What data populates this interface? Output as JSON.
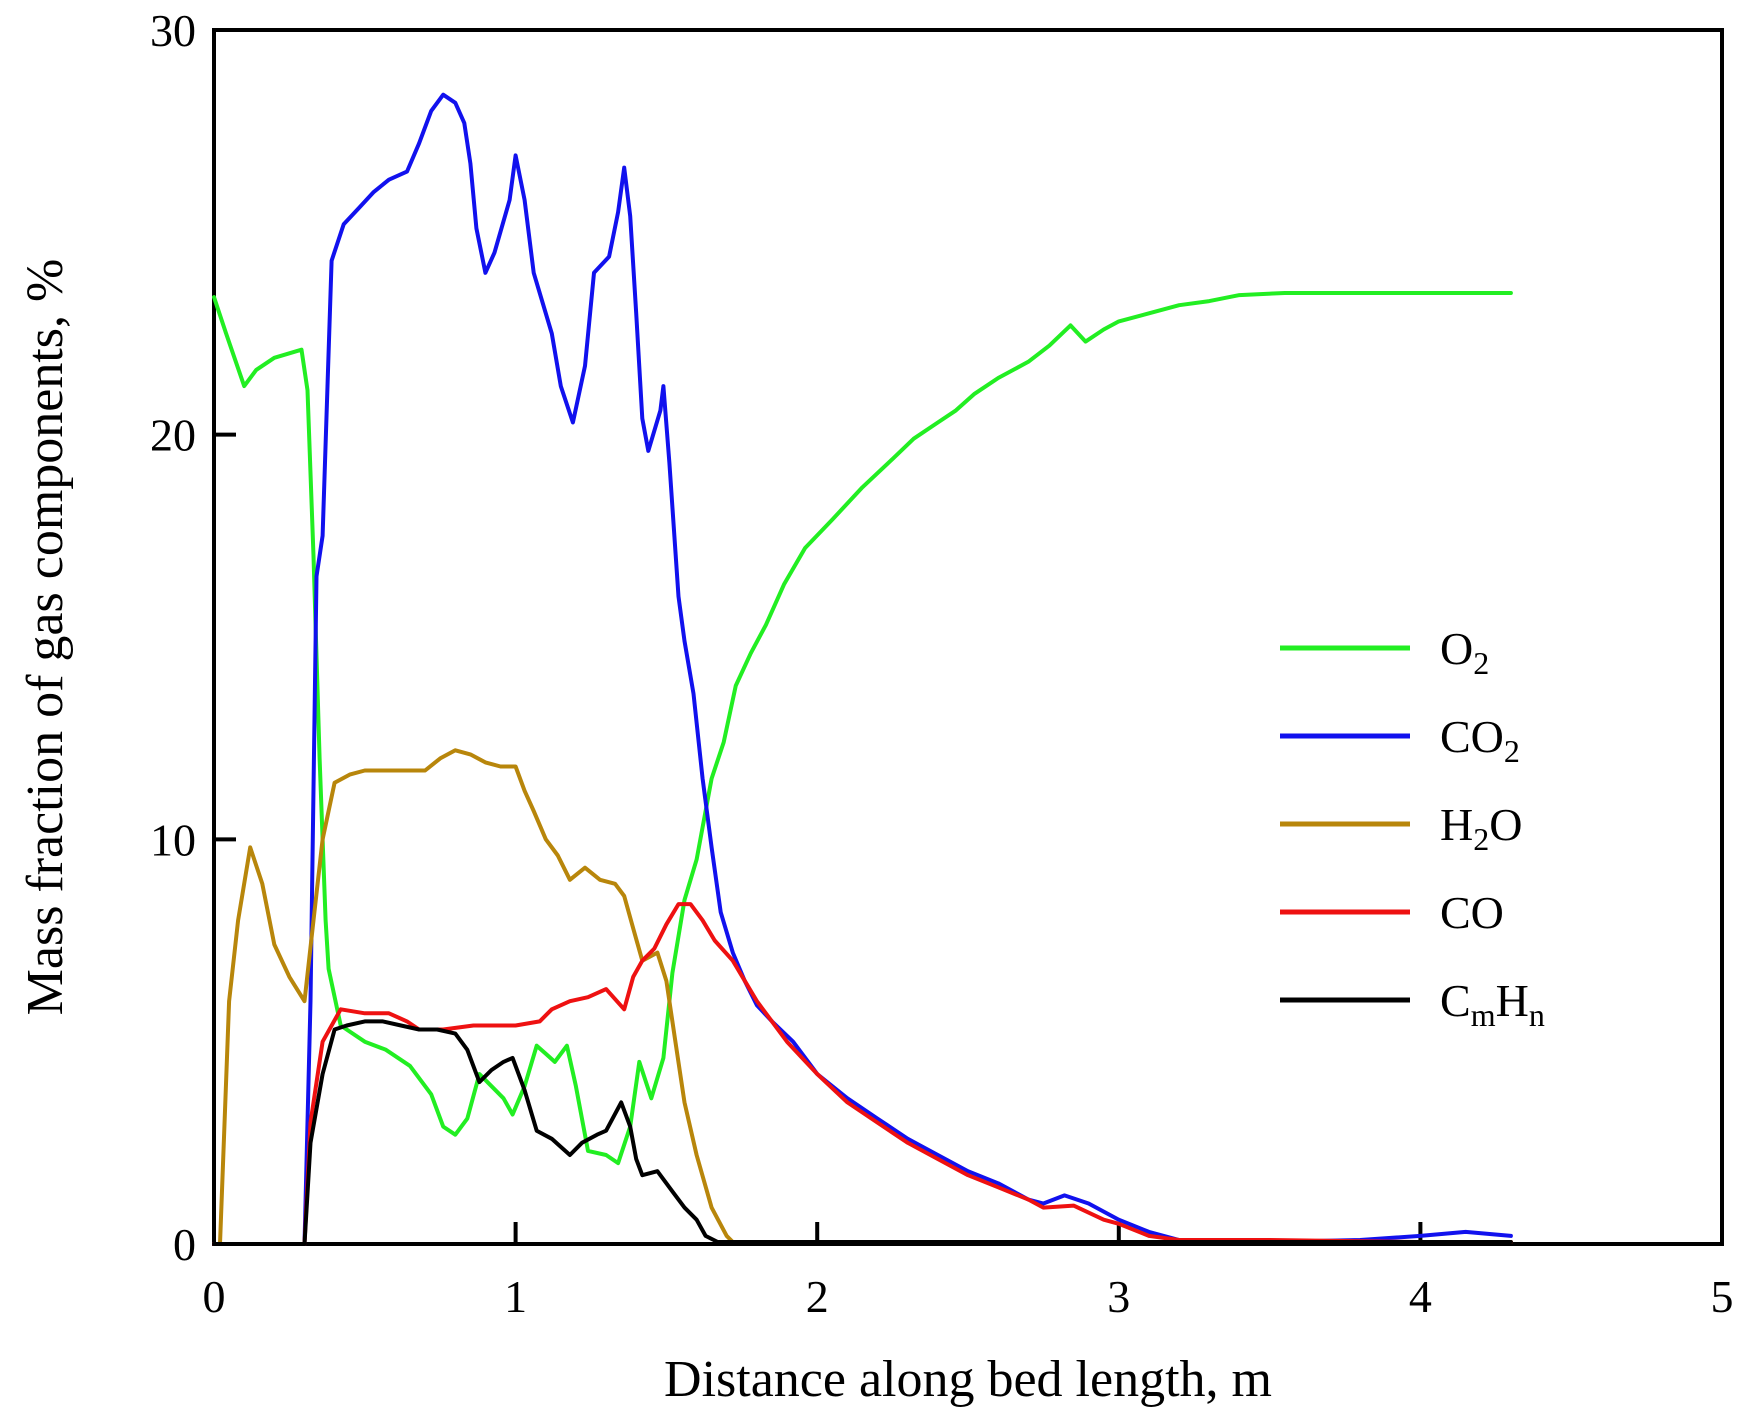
{
  "chart_data": {
    "type": "line",
    "title": "",
    "xlabel": "Distance along bed length, m",
    "ylabel": "Mass fraction of gas components, %",
    "xlim": [
      0,
      5
    ],
    "ylim": [
      0,
      30
    ],
    "xticks": [
      0,
      1,
      2,
      3,
      4,
      5
    ],
    "yticks": [
      0,
      10,
      20,
      30
    ],
    "xtick_labels": [
      "0",
      "1",
      "2",
      "3",
      "4",
      "5"
    ],
    "ytick_labels": [
      "0",
      "10",
      "20",
      "30"
    ],
    "grid": false,
    "legend_position": "right",
    "series": [
      {
        "name": "O2",
        "label_main": "O",
        "label_sub": "2",
        "label_main2": "",
        "label_sub2": "",
        "color": "#22ee22",
        "points": [
          [
            0,
            23.4
          ],
          [
            0.04,
            22.5
          ],
          [
            0.1,
            21.2
          ],
          [
            0.14,
            21.6
          ],
          [
            0.2,
            21.9
          ],
          [
            0.29,
            22.1
          ],
          [
            0.31,
            21.1
          ],
          [
            0.33,
            17
          ],
          [
            0.35,
            12
          ],
          [
            0.37,
            8
          ],
          [
            0.38,
            6.8
          ],
          [
            0.42,
            5.4
          ],
          [
            0.5,
            5.0
          ],
          [
            0.57,
            4.8
          ],
          [
            0.65,
            4.4
          ],
          [
            0.72,
            3.7
          ],
          [
            0.76,
            2.9
          ],
          [
            0.8,
            2.7
          ],
          [
            0.84,
            3.1
          ],
          [
            0.88,
            4.2
          ],
          [
            0.92,
            3.9
          ],
          [
            0.96,
            3.6
          ],
          [
            0.99,
            3.2
          ],
          [
            1.03,
            3.9
          ],
          [
            1.07,
            4.9
          ],
          [
            1.1,
            4.7
          ],
          [
            1.13,
            4.5
          ],
          [
            1.17,
            4.9
          ],
          [
            1.2,
            3.9
          ],
          [
            1.24,
            2.3
          ],
          [
            1.3,
            2.2
          ],
          [
            1.34,
            2.0
          ],
          [
            1.38,
            2.9
          ],
          [
            1.41,
            4.5
          ],
          [
            1.45,
            3.6
          ],
          [
            1.49,
            4.6
          ],
          [
            1.52,
            6.7
          ],
          [
            1.56,
            8.5
          ],
          [
            1.6,
            9.5
          ],
          [
            1.65,
            11.5
          ],
          [
            1.69,
            12.4
          ],
          [
            1.73,
            13.8
          ],
          [
            1.78,
            14.6
          ],
          [
            1.83,
            15.3
          ],
          [
            1.89,
            16.3
          ],
          [
            1.96,
            17.2
          ],
          [
            2.05,
            17.9
          ],
          [
            2.15,
            18.7
          ],
          [
            2.25,
            19.4
          ],
          [
            2.32,
            19.9
          ],
          [
            2.4,
            20.3
          ],
          [
            2.46,
            20.6
          ],
          [
            2.52,
            21.0
          ],
          [
            2.6,
            21.4
          ],
          [
            2.7,
            21.8
          ],
          [
            2.77,
            22.2
          ],
          [
            2.84,
            22.7
          ],
          [
            2.89,
            22.3
          ],
          [
            2.95,
            22.6
          ],
          [
            3.0,
            22.8
          ],
          [
            3.1,
            23.0
          ],
          [
            3.2,
            23.2
          ],
          [
            3.3,
            23.3
          ],
          [
            3.4,
            23.45
          ],
          [
            3.55,
            23.5
          ],
          [
            4.0,
            23.5
          ],
          [
            4.3,
            23.5
          ]
        ]
      },
      {
        "name": "CO2",
        "label_main": "CO",
        "label_sub": "2",
        "label_main2": "",
        "label_sub2": "",
        "color": "#1111ee",
        "points": [
          [
            0,
            0
          ],
          [
            0.05,
            0
          ],
          [
            0.3,
            0
          ],
          [
            0.32,
            6
          ],
          [
            0.34,
            16.5
          ],
          [
            0.36,
            17.5
          ],
          [
            0.39,
            24.3
          ],
          [
            0.43,
            25.2
          ],
          [
            0.48,
            25.6
          ],
          [
            0.53,
            26.0
          ],
          [
            0.58,
            26.3
          ],
          [
            0.64,
            26.5
          ],
          [
            0.68,
            27.2
          ],
          [
            0.72,
            28.0
          ],
          [
            0.76,
            28.4
          ],
          [
            0.8,
            28.2
          ],
          [
            0.83,
            27.7
          ],
          [
            0.85,
            26.7
          ],
          [
            0.87,
            25.1
          ],
          [
            0.9,
            24.0
          ],
          [
            0.93,
            24.5
          ],
          [
            0.98,
            25.8
          ],
          [
            1.0,
            26.9
          ],
          [
            1.03,
            25.8
          ],
          [
            1.06,
            24.0
          ],
          [
            1.12,
            22.5
          ],
          [
            1.15,
            21.2
          ],
          [
            1.19,
            20.3
          ],
          [
            1.23,
            21.7
          ],
          [
            1.26,
            24.0
          ],
          [
            1.31,
            24.4
          ],
          [
            1.34,
            25.5
          ],
          [
            1.36,
            26.6
          ],
          [
            1.38,
            25.4
          ],
          [
            1.4,
            23.0
          ],
          [
            1.42,
            20.4
          ],
          [
            1.44,
            19.6
          ],
          [
            1.48,
            20.6
          ],
          [
            1.49,
            21.2
          ],
          [
            1.51,
            19.3
          ],
          [
            1.54,
            16.0
          ],
          [
            1.56,
            14.9
          ],
          [
            1.59,
            13.6
          ],
          [
            1.62,
            11.5
          ],
          [
            1.65,
            9.8
          ],
          [
            1.68,
            8.2
          ],
          [
            1.72,
            7.2
          ],
          [
            1.76,
            6.5
          ],
          [
            1.8,
            5.9
          ],
          [
            1.85,
            5.5
          ],
          [
            1.92,
            5.0
          ],
          [
            2.0,
            4.2
          ],
          [
            2.1,
            3.6
          ],
          [
            2.2,
            3.1
          ],
          [
            2.3,
            2.6
          ],
          [
            2.4,
            2.2
          ],
          [
            2.5,
            1.8
          ],
          [
            2.6,
            1.5
          ],
          [
            2.7,
            1.1
          ],
          [
            2.75,
            1.0
          ],
          [
            2.82,
            1.2
          ],
          [
            2.9,
            1.0
          ],
          [
            3.0,
            0.6
          ],
          [
            3.1,
            0.3
          ],
          [
            3.2,
            0.1
          ],
          [
            3.3,
            0.05
          ],
          [
            3.5,
            0.05
          ],
          [
            3.8,
            0.1
          ],
          [
            4.0,
            0.2
          ],
          [
            4.15,
            0.3
          ],
          [
            4.3,
            0.2
          ]
        ]
      },
      {
        "name": "H2O",
        "label_main": "H",
        "label_sub": "2",
        "label_main2": "O",
        "label_sub2": "",
        "color": "#b8860b",
        "points": [
          [
            0,
            0
          ],
          [
            0.02,
            0
          ],
          [
            0.05,
            6.0
          ],
          [
            0.08,
            8.0
          ],
          [
            0.12,
            9.8
          ],
          [
            0.16,
            8.9
          ],
          [
            0.2,
            7.4
          ],
          [
            0.25,
            6.6
          ],
          [
            0.3,
            6.0
          ],
          [
            0.33,
            8.0
          ],
          [
            0.36,
            10.0
          ],
          [
            0.4,
            11.4
          ],
          [
            0.45,
            11.6
          ],
          [
            0.5,
            11.7
          ],
          [
            0.56,
            11.7
          ],
          [
            0.66,
            11.7
          ],
          [
            0.7,
            11.7
          ],
          [
            0.75,
            12.0
          ],
          [
            0.8,
            12.2
          ],
          [
            0.85,
            12.1
          ],
          [
            0.9,
            11.9
          ],
          [
            0.95,
            11.8
          ],
          [
            1.0,
            11.8
          ],
          [
            1.03,
            11.2
          ],
          [
            1.06,
            10.7
          ],
          [
            1.1,
            10.0
          ],
          [
            1.14,
            9.6
          ],
          [
            1.18,
            9.0
          ],
          [
            1.23,
            9.3
          ],
          [
            1.28,
            9.0
          ],
          [
            1.33,
            8.9
          ],
          [
            1.36,
            8.6
          ],
          [
            1.39,
            7.8
          ],
          [
            1.42,
            7.0
          ],
          [
            1.47,
            7.2
          ],
          [
            1.5,
            6.5
          ],
          [
            1.53,
            5.0
          ],
          [
            1.56,
            3.5
          ],
          [
            1.6,
            2.2
          ],
          [
            1.65,
            0.9
          ],
          [
            1.7,
            0.2
          ],
          [
            1.72,
            0.05
          ],
          [
            2.0,
            0.05
          ],
          [
            2.2,
            0.05
          ],
          [
            3.0,
            0.05
          ],
          [
            3.5,
            0.05
          ],
          [
            4.0,
            0.05
          ],
          [
            4.3,
            0.05
          ]
        ]
      },
      {
        "name": "CO",
        "label_main": "CO",
        "label_sub": "",
        "label_main2": "",
        "label_sub2": "",
        "color": "#ee1111",
        "points": [
          [
            0,
            0
          ],
          [
            0.3,
            0
          ],
          [
            0.32,
            3.0
          ],
          [
            0.36,
            5.0
          ],
          [
            0.42,
            5.8
          ],
          [
            0.5,
            5.7
          ],
          [
            0.58,
            5.7
          ],
          [
            0.64,
            5.5
          ],
          [
            0.68,
            5.3
          ],
          [
            0.76,
            5.3
          ],
          [
            0.86,
            5.4
          ],
          [
            1.0,
            5.4
          ],
          [
            1.08,
            5.5
          ],
          [
            1.12,
            5.8
          ],
          [
            1.18,
            6.0
          ],
          [
            1.24,
            6.1
          ],
          [
            1.3,
            6.3
          ],
          [
            1.36,
            5.8
          ],
          [
            1.39,
            6.6
          ],
          [
            1.42,
            7.0
          ],
          [
            1.46,
            7.3
          ],
          [
            1.5,
            7.9
          ],
          [
            1.54,
            8.4
          ],
          [
            1.58,
            8.4
          ],
          [
            1.62,
            8.0
          ],
          [
            1.66,
            7.5
          ],
          [
            1.72,
            7.0
          ],
          [
            1.8,
            6.0
          ],
          [
            1.9,
            5.0
          ],
          [
            2.0,
            4.2
          ],
          [
            2.1,
            3.5
          ],
          [
            2.2,
            3.0
          ],
          [
            2.3,
            2.5
          ],
          [
            2.4,
            2.1
          ],
          [
            2.5,
            1.7
          ],
          [
            2.6,
            1.4
          ],
          [
            2.7,
            1.1
          ],
          [
            2.75,
            0.9
          ],
          [
            2.85,
            0.95
          ],
          [
            2.95,
            0.6
          ],
          [
            3.0,
            0.5
          ],
          [
            3.1,
            0.2
          ],
          [
            3.2,
            0.1
          ],
          [
            3.5,
            0.1
          ],
          [
            4.0,
            0.05
          ],
          [
            4.3,
            0.05
          ]
        ]
      },
      {
        "name": "CmHn",
        "label_main": "C",
        "label_sub": "m",
        "label_main2": "H",
        "label_sub2": "n",
        "color": "#000000",
        "points": [
          [
            0,
            0
          ],
          [
            0.3,
            0
          ],
          [
            0.32,
            2.5
          ],
          [
            0.36,
            4.2
          ],
          [
            0.4,
            5.3
          ],
          [
            0.44,
            5.4
          ],
          [
            0.5,
            5.5
          ],
          [
            0.56,
            5.5
          ],
          [
            0.62,
            5.4
          ],
          [
            0.68,
            5.3
          ],
          [
            0.74,
            5.3
          ],
          [
            0.8,
            5.2
          ],
          [
            0.84,
            4.8
          ],
          [
            0.88,
            4.0
          ],
          [
            0.92,
            4.3
          ],
          [
            0.96,
            4.5
          ],
          [
            0.99,
            4.6
          ],
          [
            1.03,
            3.8
          ],
          [
            1.07,
            2.8
          ],
          [
            1.12,
            2.6
          ],
          [
            1.18,
            2.2
          ],
          [
            1.22,
            2.5
          ],
          [
            1.27,
            2.7
          ],
          [
            1.3,
            2.8
          ],
          [
            1.35,
            3.5
          ],
          [
            1.38,
            2.9
          ],
          [
            1.4,
            2.1
          ],
          [
            1.42,
            1.7
          ],
          [
            1.47,
            1.8
          ],
          [
            1.52,
            1.3
          ],
          [
            1.56,
            0.9
          ],
          [
            1.6,
            0.6
          ],
          [
            1.63,
            0.2
          ],
          [
            1.67,
            0.05
          ],
          [
            1.8,
            0.05
          ],
          [
            2.0,
            0.05
          ],
          [
            3.0,
            0.05
          ],
          [
            4.0,
            0.05
          ],
          [
            4.3,
            0.05
          ]
        ]
      }
    ]
  }
}
